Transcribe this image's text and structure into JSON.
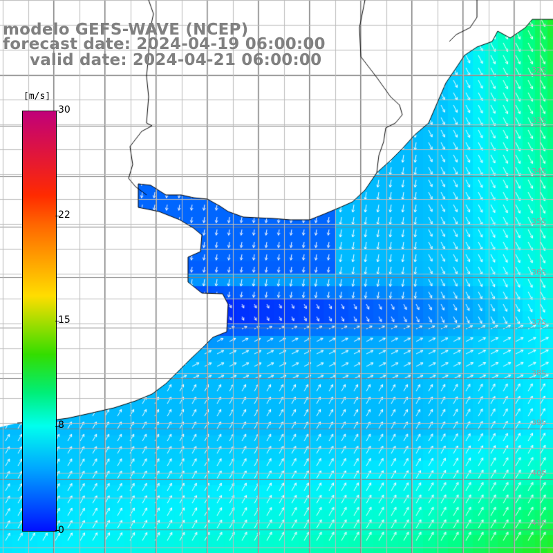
{
  "header": {
    "line1": "modelo GEFS-WAVE (NCEP)",
    "line2": "forecast date: 2024-04-19 06:00:00",
    "line3": "valid date: 2024-04-21 06:00:00"
  },
  "colorbar": {
    "units": "[m/s]",
    "ticks": [
      "30",
      "22",
      "15",
      "8",
      "0"
    ],
    "colors": [
      "#c0007a",
      "#ff2a00",
      "#ff6600",
      "#ffdd00",
      "#33dd00",
      "#00ee77",
      "#00ffee",
      "#00a8ff",
      "#0044ff",
      "#0010ff"
    ]
  },
  "lat_labels": [
    "32S",
    "33S",
    "34S",
    "35S",
    "36S",
    "37S",
    "38S",
    "39S",
    "40S",
    "41S"
  ],
  "colors": {
    "land": "#ffffff",
    "grid": "#808080",
    "coast": "#000000",
    "arrow": "#ffffff",
    "title": "#808080"
  }
}
